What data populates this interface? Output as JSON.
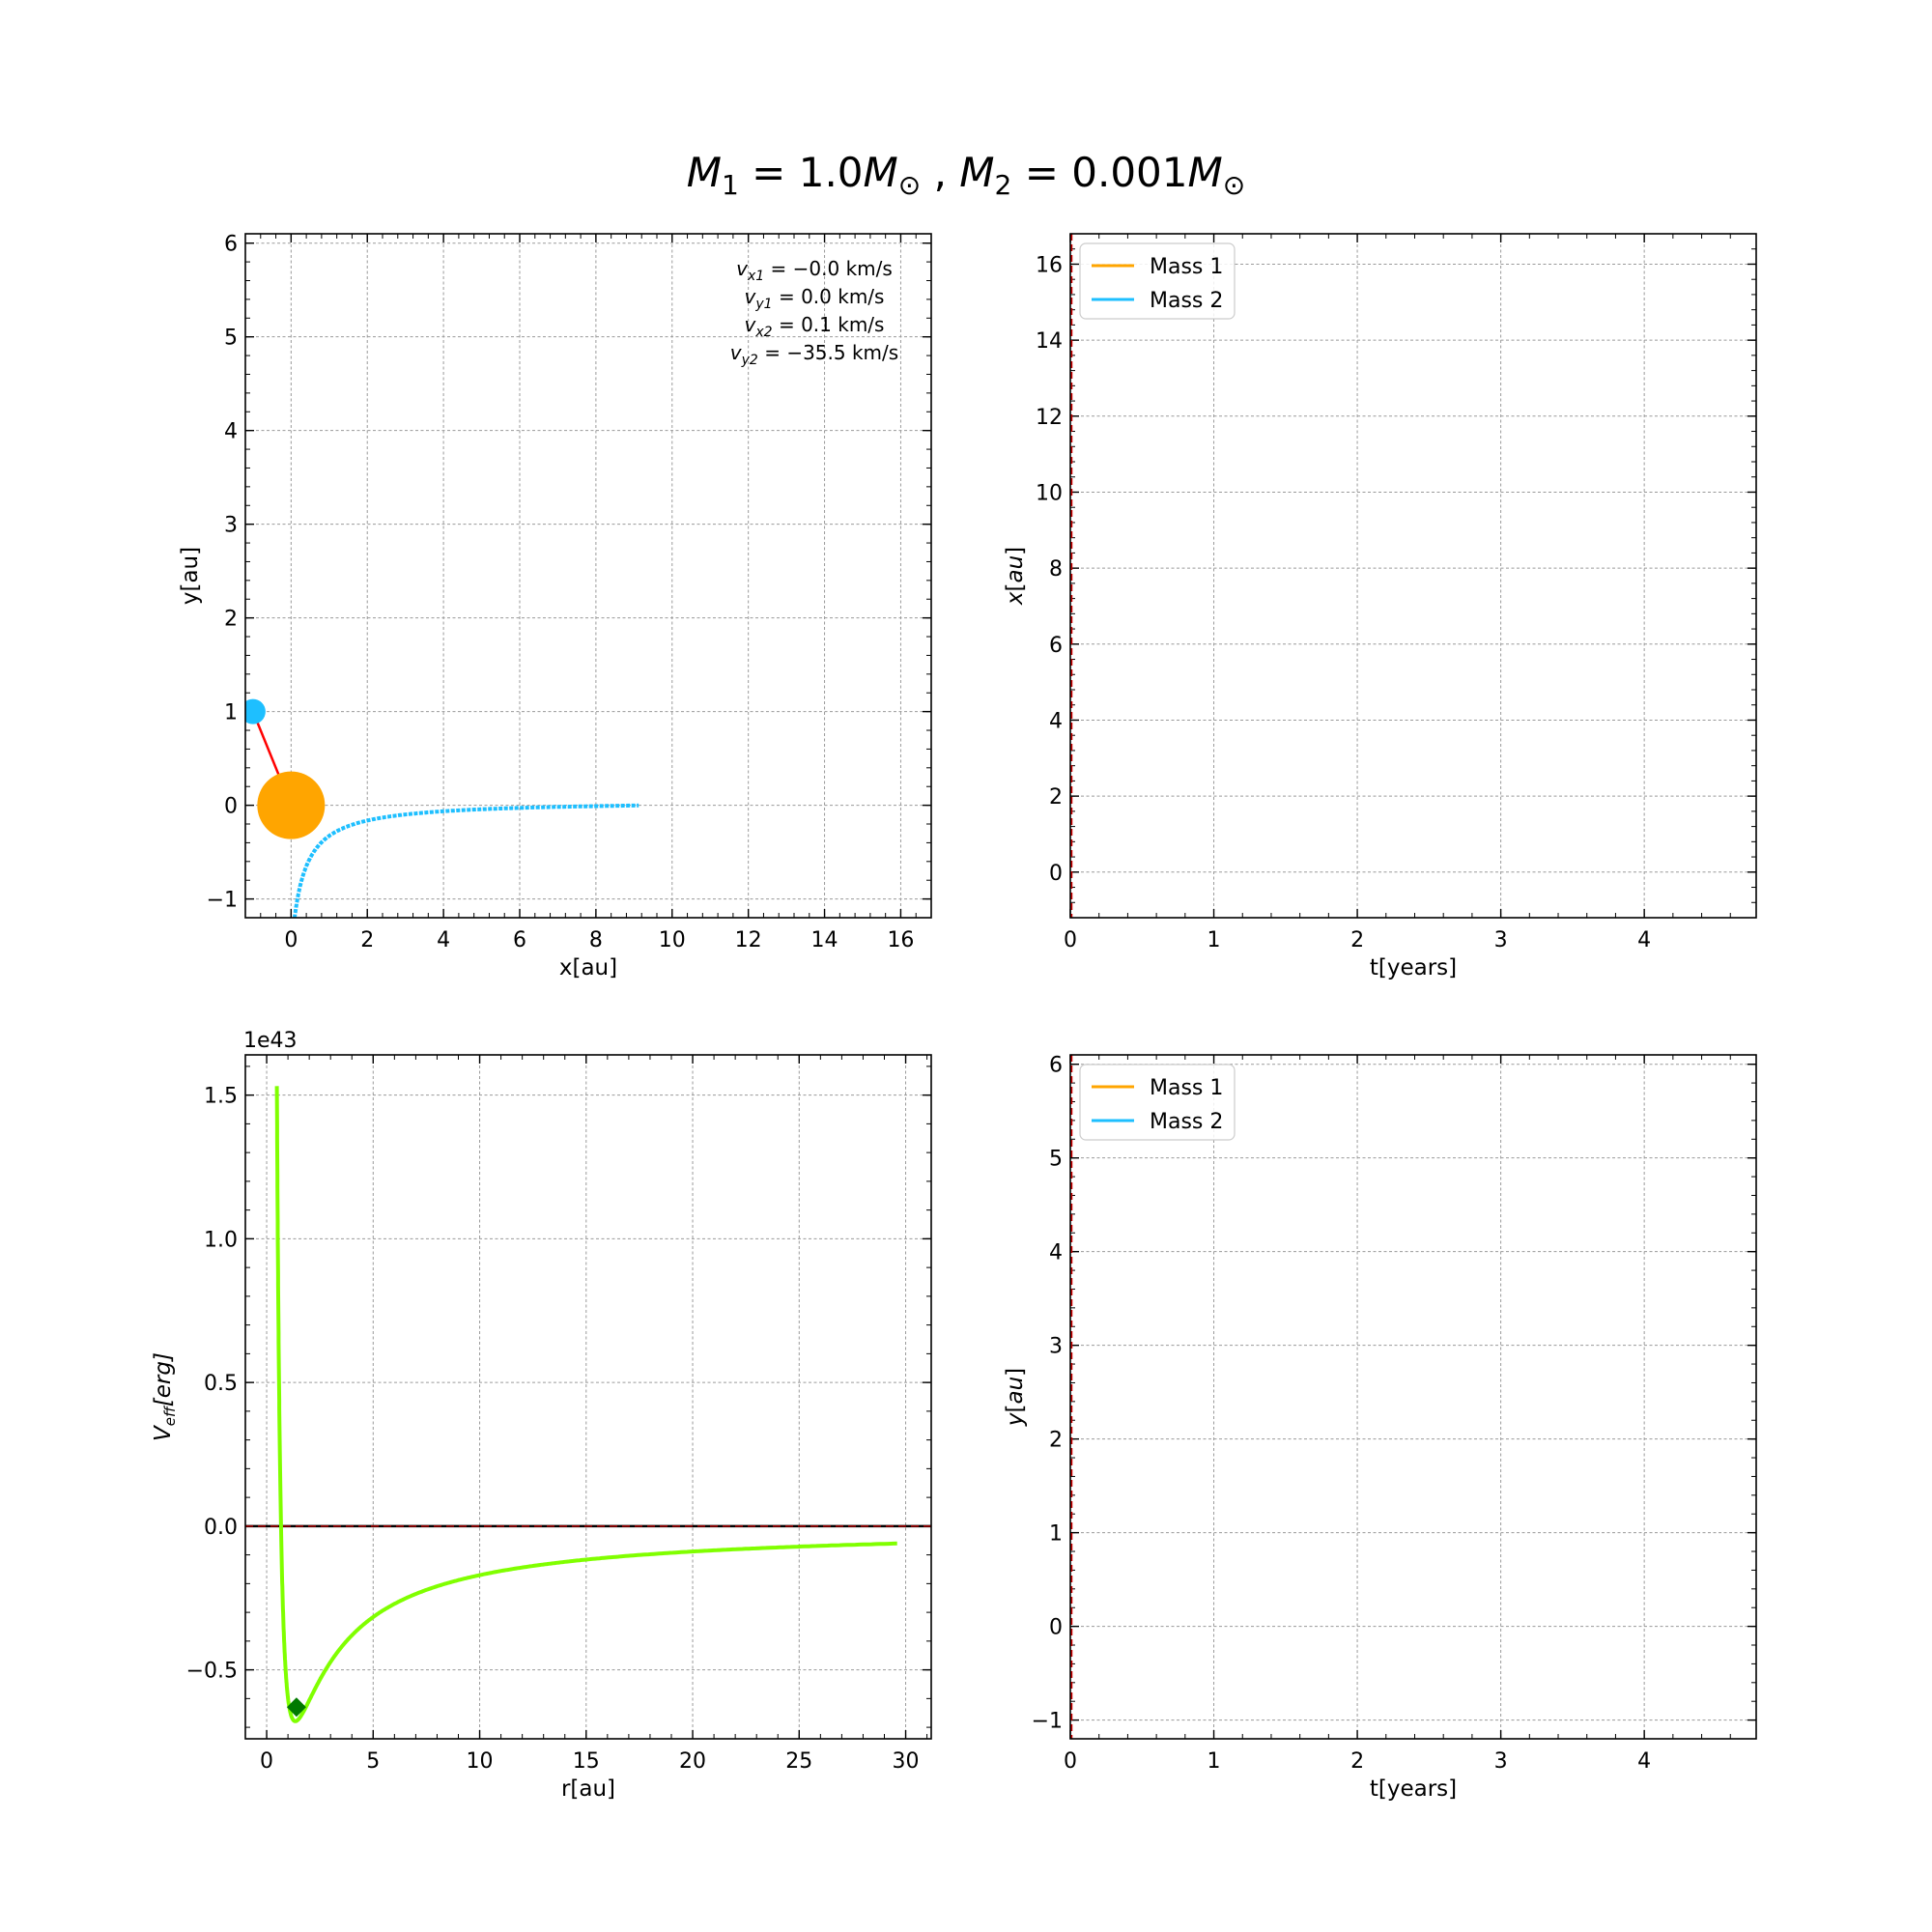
{
  "title": {
    "m1_symbol": "M",
    "m1_sub": "1",
    "m1_value": " = 1.0",
    "m2_symbol": "M",
    "m2_sub": "2",
    "m2_value": " = 0.001",
    "sun_symbol": "⊙",
    "separator": " , "
  },
  "colors": {
    "mass1": "#ffa500",
    "mass2": "#1ebfff",
    "link": "#ff0000",
    "potential": "#80ff00",
    "minimum_marker": "#007a00",
    "zero_line": "#000000",
    "time_marker": "#cc0000"
  },
  "chart_data": [
    {
      "id": "orbit",
      "type": "scatter",
      "xlabel": "x[au]",
      "ylabel": "y[au]",
      "xlim": [
        -1.2,
        16.8
      ],
      "ylim": [
        -1.2,
        6.1
      ],
      "xticks": [
        0,
        2,
        4,
        6,
        8,
        10,
        12,
        14,
        16
      ],
      "yticks": [
        -1,
        0,
        1,
        2,
        3,
        4,
        5,
        6
      ],
      "grid": true,
      "mass1_position": [
        0,
        0
      ],
      "mass2_position": [
        -1,
        1
      ],
      "trajectory_hyperbola": {
        "a": 1,
        "b": 1,
        "t_start": 0,
        "t_end": 2.6,
        "rotation_deg": -45,
        "center": [
          0,
          0
        ]
      },
      "annotation": [
        {
          "sym": "v",
          "sub": "x1",
          "eq": " = −0.0 km/s"
        },
        {
          "sym": "v",
          "sub": "y1",
          "eq": " = 0.0 km/s"
        },
        {
          "sym": "v",
          "sub": "x2",
          "eq": " = 0.1 km/s"
        },
        {
          "sym": "v",
          "sub": "y2",
          "eq": " = −35.5 km/s"
        }
      ]
    },
    {
      "id": "x_vs_t",
      "type": "line",
      "xlabel": "t[years]",
      "ylabel": "x[au]",
      "xlim": [
        0,
        4.78
      ],
      "ylim": [
        -1.2,
        16.8
      ],
      "xticks": [
        0,
        1,
        2,
        3,
        4
      ],
      "yticks": [
        0,
        2,
        4,
        6,
        8,
        10,
        12,
        14,
        16
      ],
      "grid": true,
      "legend": "top-left",
      "series": [
        {
          "name": "Mass 1",
          "color": "#ffa500"
        },
        {
          "name": "Mass 2",
          "color": "#1ebfff"
        }
      ],
      "time_marker": 0
    },
    {
      "id": "effective_potential",
      "type": "line",
      "xlabel": "r[au]",
      "ylabel_sym": "V",
      "ylabel_sub": "eff",
      "ylabel_unit": "[erg]",
      "offset_text": "1e43",
      "xlim": [
        -1,
        31.2
      ],
      "ylim": [
        -0.74,
        1.64
      ],
      "xticks": [
        0,
        5,
        10,
        15,
        20,
        25,
        30
      ],
      "ytick_labels": [
        "−0.5",
        "0.0",
        "0.5",
        "1.0",
        "1.5"
      ],
      "yticks": [
        -0.5,
        0,
        0.5,
        1.0,
        1.5
      ],
      "grid": true,
      "curve": {
        "A": 1.23,
        "B": 0.862,
        "r_start": 0.48,
        "r_end": 29.6
      },
      "minimum_marker": [
        1.4,
        -0.63
      ],
      "zero_line": 0
    },
    {
      "id": "y_vs_t",
      "type": "line",
      "xlabel": "t[years]",
      "ylabel": "y[au]",
      "xlim": [
        0,
        4.78
      ],
      "ylim": [
        -1.2,
        6.1
      ],
      "xticks": [
        0,
        1,
        2,
        3,
        4
      ],
      "yticks": [
        -1,
        0,
        1,
        2,
        3,
        4,
        5,
        6
      ],
      "grid": true,
      "legend": "top-left",
      "series": [
        {
          "name": "Mass 1",
          "color": "#ffa500"
        },
        {
          "name": "Mass 2",
          "color": "#1ebfff"
        }
      ],
      "time_marker": 0
    }
  ]
}
